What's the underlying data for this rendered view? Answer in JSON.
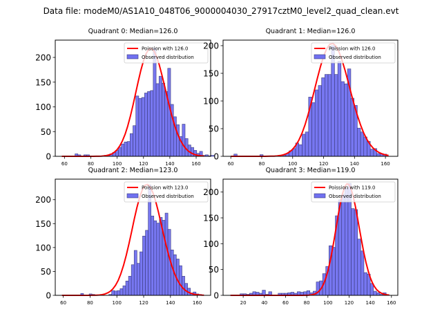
{
  "figure": {
    "suptitle": "Data file: modeM0/AS1A10_048T06_9000004030_27917cztM0_level2_quad_clean.evt"
  },
  "chart_data": [
    {
      "type": "bar",
      "title": "Quadrant 0: Median=126.0",
      "xlim": [
        53,
        171
      ],
      "ylim": [
        0,
        235
      ],
      "xticks": [
        60,
        80,
        100,
        120,
        140,
        160
      ],
      "yticks": [
        0,
        50,
        100,
        150,
        200
      ],
      "bin_width": 2.2,
      "bin_start": 68,
      "counts": [
        5,
        3,
        0,
        3,
        3,
        0,
        0,
        0,
        0,
        0,
        2,
        3,
        5,
        8,
        12,
        18,
        25,
        29,
        30,
        46,
        62,
        122,
        117,
        119,
        128,
        131,
        133,
        219,
        147,
        162,
        148,
        131,
        178,
        105,
        80,
        64,
        40,
        65,
        36,
        23,
        18,
        12,
        6,
        10,
        2,
        3,
        1,
        2
      ],
      "legend": {
        "line_label": "Poission with 126.0",
        "bar_label": "Observed distribution",
        "position": "top-right"
      },
      "poisson_mean": 126.0,
      "poisson_peak": 218
    },
    {
      "type": "bar",
      "title": "Quadrant 1: Median=126.0",
      "xlim": [
        55,
        168
      ],
      "ylim": [
        0,
        210
      ],
      "xticks": [
        60,
        80,
        100,
        120,
        140,
        160
      ],
      "yticks": [
        0,
        50,
        100,
        150,
        200
      ],
      "bin_width": 2.1,
      "bin_start": 62,
      "counts": [
        4,
        0,
        0,
        0,
        0,
        0,
        0,
        0,
        3,
        0,
        0,
        0,
        0,
        0,
        0,
        2,
        5,
        10,
        14,
        24,
        21,
        40,
        44,
        107,
        97,
        120,
        128,
        142,
        148,
        148,
        200,
        148,
        172,
        135,
        131,
        158,
        105,
        92,
        51,
        44,
        35,
        27,
        13,
        14,
        5,
        5,
        4
      ],
      "legend": {
        "line_label": "Poission with 126.0",
        "bar_label": "Observed distribution",
        "position": "top-right"
      },
      "poisson_mean": 126.0,
      "poisson_peak": 204
    },
    {
      "type": "bar",
      "title": "Quadrant 2: Median=123.0",
      "xlim": [
        54,
        170
      ],
      "ylim": [
        0,
        243
      ],
      "xticks": [
        60,
        80,
        100,
        120,
        140,
        160
      ],
      "yticks": [
        0,
        50,
        100,
        150,
        200
      ],
      "bin_width": 2.1,
      "bin_start": 73,
      "counts": [
        4,
        0,
        0,
        3,
        2,
        0,
        0,
        0,
        0,
        0,
        2,
        10,
        9,
        10,
        14,
        20,
        30,
        40,
        64,
        94,
        67,
        91,
        124,
        136,
        231,
        166,
        156,
        151,
        163,
        157,
        172,
        138,
        95,
        85,
        76,
        62,
        40,
        25,
        15,
        5,
        7,
        3,
        2
      ],
      "legend": {
        "line_label": "Poission with 123.0",
        "bar_label": "Observed distribution",
        "position": "top-right"
      },
      "poisson_mean": 123.0,
      "poisson_peak": 232
    },
    {
      "type": "bar",
      "title": "Quadrant 3: Median=119.0",
      "xlim": [
        1,
        166
      ],
      "ylim": [
        0,
        225
      ],
      "xticks": [
        20,
        40,
        60,
        80,
        100,
        120,
        140,
        160
      ],
      "yticks": [
        0,
        50,
        100,
        150,
        200
      ],
      "bin_width": 3.0,
      "bin_start": 17,
      "counts": [
        3,
        3,
        2,
        4,
        7,
        6,
        4,
        10,
        2,
        7,
        0,
        0,
        4,
        4,
        4,
        5,
        6,
        4,
        7,
        6,
        7,
        9,
        5,
        8,
        26,
        28,
        42,
        56,
        96,
        93,
        154,
        185,
        196,
        207,
        217,
        168,
        166,
        109,
        86,
        44,
        41,
        23,
        8,
        5,
        2,
        5
      ],
      "legend": {
        "line_label": "Poission with 119.0",
        "bar_label": "Observed distribution",
        "position": "top-right"
      },
      "poisson_mean": 119.0,
      "poisson_peak": 216
    }
  ],
  "colors": {
    "bar_fill": "#7070f0",
    "bar_edge": "#3a3a7a",
    "poisson_line": "#ff0000"
  }
}
